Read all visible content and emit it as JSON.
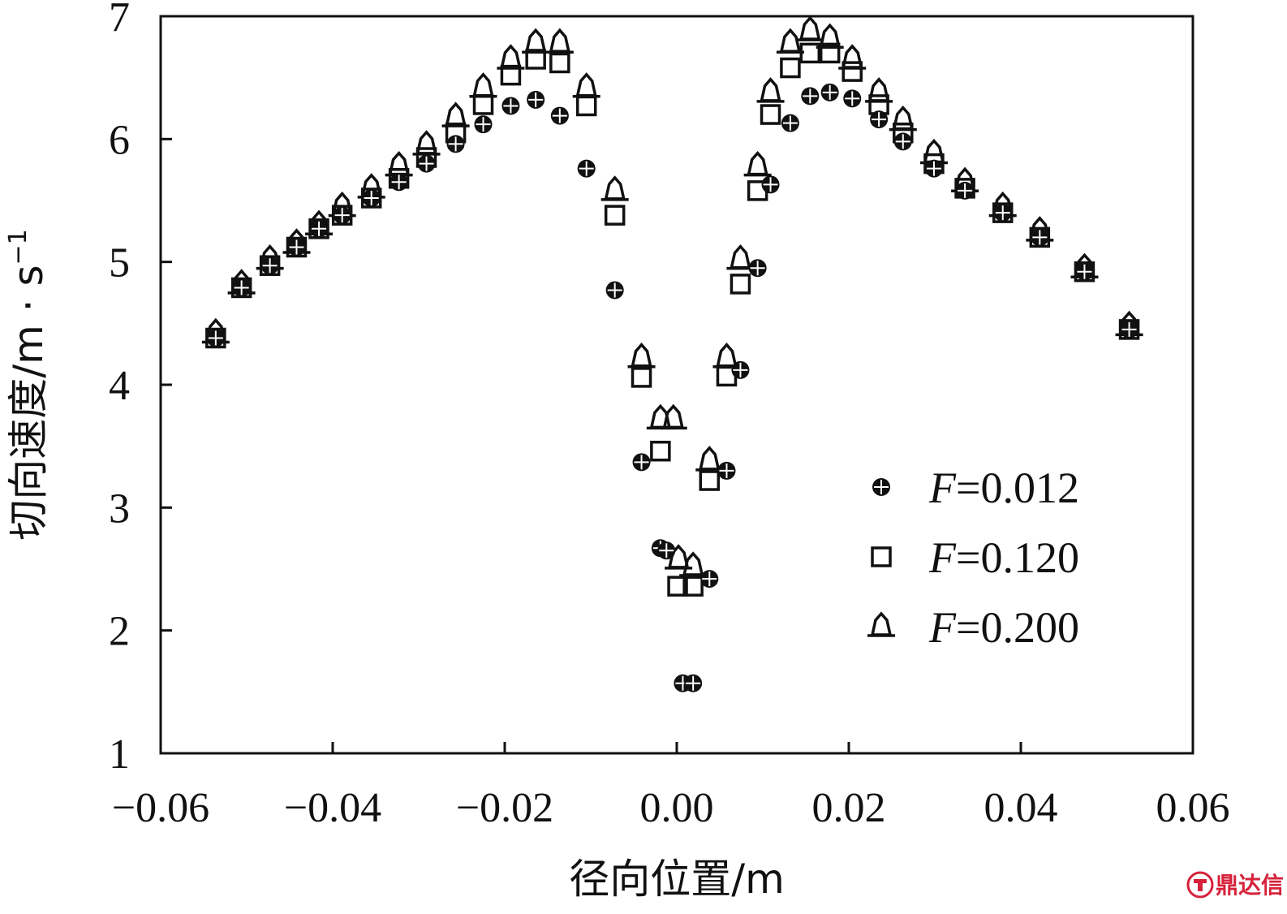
{
  "chart_data": {
    "type": "scatter",
    "xlabel": "径向位置/m",
    "ylabel": "切向速度/m · s",
    "ylabel_sup": "−1",
    "xlim": [
      -0.06,
      0.06
    ],
    "ylim": [
      1,
      7
    ],
    "x_ticks": [
      -0.06,
      -0.04,
      -0.02,
      0.0,
      0.02,
      0.04,
      0.06
    ],
    "x_tick_labels": [
      "−0.06",
      "−0.04",
      "−0.02",
      "0.00",
      "0.02",
      "0.04",
      "0.06"
    ],
    "y_ticks": [
      1,
      2,
      3,
      4,
      5,
      6,
      7
    ],
    "y_tick_labels": [
      "1",
      "2",
      "3",
      "4",
      "5",
      "6",
      "7"
    ],
    "grid": false,
    "legend_position": "bottom-right",
    "series": [
      {
        "name": "F=0.012",
        "name_italic": "F",
        "name_rest": "=0.012",
        "marker": "filled-circle",
        "x": [
          -0.0536,
          -0.0506,
          -0.0473,
          -0.0442,
          -0.0416,
          -0.0389,
          -0.0355,
          -0.0323,
          -0.0291,
          -0.0257,
          -0.0225,
          -0.0193,
          -0.0164,
          -0.0136,
          -0.0105,
          -0.0072,
          -0.0041,
          -0.0019,
          -0.0012,
          0.0007,
          0.0019,
          0.0038,
          0.0058,
          0.0074,
          0.0094,
          0.0109,
          0.0132,
          0.0155,
          0.0178,
          0.0204,
          0.0235,
          0.0263,
          0.0299,
          0.0335,
          0.0379,
          0.0422,
          0.0474,
          0.0526
        ],
        "y": [
          4.38,
          4.79,
          4.97,
          5.12,
          5.27,
          5.38,
          5.52,
          5.65,
          5.8,
          5.96,
          6.12,
          6.27,
          6.32,
          6.19,
          5.76,
          4.77,
          3.37,
          2.67,
          2.65,
          1.57,
          1.57,
          2.42,
          3.3,
          4.12,
          4.95,
          5.63,
          6.13,
          6.35,
          6.38,
          6.33,
          6.16,
          5.98,
          5.76,
          5.58,
          5.4,
          5.2,
          4.92,
          4.45
        ]
      },
      {
        "name": "F=0.120",
        "name_italic": "F",
        "name_rest": "=0.120",
        "marker": "open-square",
        "x": [
          -0.0536,
          -0.0506,
          -0.0473,
          -0.0442,
          -0.0416,
          -0.0389,
          -0.0355,
          -0.0323,
          -0.0291,
          -0.0257,
          -0.0225,
          -0.0193,
          -0.0164,
          -0.0136,
          -0.0105,
          -0.0072,
          -0.0041,
          -0.0019,
          0.0001,
          0.0019,
          0.0038,
          0.0058,
          0.0074,
          0.0094,
          0.0109,
          0.0132,
          0.0155,
          0.0178,
          0.0204,
          0.0235,
          0.0263,
          0.0299,
          0.0335,
          0.0379,
          0.0422,
          0.0474,
          0.0526
        ],
        "y": [
          4.38,
          4.79,
          4.97,
          5.12,
          5.27,
          5.38,
          5.52,
          5.68,
          5.85,
          6.05,
          6.28,
          6.52,
          6.65,
          6.62,
          6.27,
          5.38,
          4.06,
          3.46,
          2.36,
          2.36,
          3.22,
          4.07,
          4.82,
          5.58,
          6.2,
          6.58,
          6.7,
          6.7,
          6.55,
          6.28,
          6.05,
          5.8,
          5.6,
          5.4,
          5.2,
          4.92,
          4.45
        ]
      },
      {
        "name": "F=0.200",
        "name_italic": "F",
        "name_rest": "=0.200",
        "marker": "open-triangle",
        "x": [
          -0.0536,
          -0.0506,
          -0.0473,
          -0.0442,
          -0.0416,
          -0.0389,
          -0.0355,
          -0.0323,
          -0.0291,
          -0.0257,
          -0.0225,
          -0.0193,
          -0.0164,
          -0.0136,
          -0.0105,
          -0.0072,
          -0.0041,
          -0.0019,
          -0.0004,
          0.0002,
          0.0019,
          0.0038,
          0.0058,
          0.0074,
          0.0094,
          0.0109,
          0.0132,
          0.0155,
          0.0178,
          0.0204,
          0.0235,
          0.0263,
          0.0299,
          0.0335,
          0.0379,
          0.0422,
          0.0474,
          0.0526
        ],
        "y": [
          4.42,
          4.82,
          5.02,
          5.15,
          5.3,
          5.45,
          5.6,
          5.78,
          5.95,
          6.18,
          6.42,
          6.65,
          6.78,
          6.78,
          6.42,
          5.58,
          4.22,
          3.72,
          3.72,
          2.58,
          2.52,
          3.38,
          4.22,
          5.02,
          5.78,
          6.38,
          6.78,
          6.88,
          6.82,
          6.65,
          6.38,
          6.15,
          5.88,
          5.65,
          5.45,
          5.25,
          4.95,
          4.48
        ]
      }
    ]
  },
  "watermark": {
    "icon": "cn-badge-icon",
    "text": "鼎达信",
    "color": "#d6223a"
  }
}
